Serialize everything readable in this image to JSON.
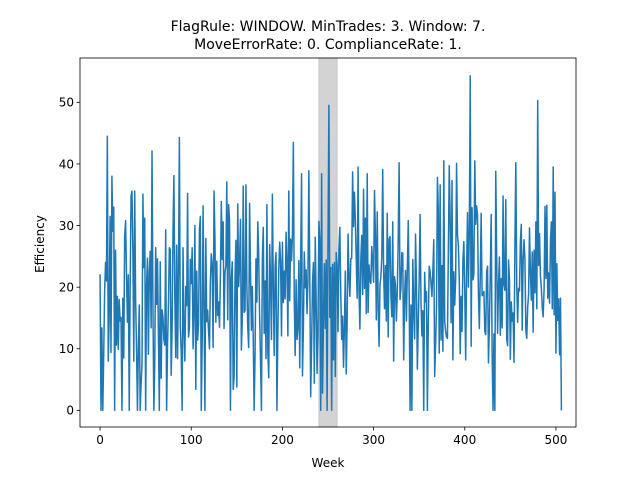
{
  "chart_data": {
    "type": "line",
    "title_lines": [
      "FlagRule: WINDOW. MinTrades: 3. Window: 7.",
      "MoveErrorRate: 0. ComplianceRate: 1."
    ],
    "xlabel": "Week",
    "ylabel": "Efficiency",
    "xlim": [
      -22,
      522
    ],
    "ylim": [
      -2.7,
      57.2
    ],
    "xticks": [
      0,
      100,
      200,
      300,
      400,
      500
    ],
    "yticks": [
      0,
      10,
      20,
      30,
      40,
      50
    ],
    "grid": false,
    "highlight_band": {
      "x_start": 240,
      "x_end": 260,
      "color": "#d3d3d3"
    },
    "series": [
      {
        "color": "#1f77b4",
        "x_start": 0,
        "x_step": 1,
        "values": [
          22.1,
          0,
          13.4,
          0,
          9,
          19.3,
          24,
          21,
          44.5,
          8,
          15.1,
          31.5,
          9.4,
          38,
          29.1,
          33,
          0,
          26,
          10.6,
          18.5,
          9.9,
          18,
          14.5,
          15.1,
          0,
          18.2,
          8.5,
          28.2,
          30.8,
          22.1,
          14.3,
          22,
          0,
          19.9,
          34.8,
          35.6,
          26,
          8,
          35.6,
          18,
          10.2,
          0,
          10.1,
          17.1,
          0,
          4.3,
          7.5,
          35.1,
          23.2,
          31.2,
          0,
          20.3,
          24.7,
          9.1,
          22.4,
          25.8,
          13.4,
          42.1,
          17.2,
          0,
          7.8,
          26.4,
          17.2,
          24.6,
          12.2,
          0,
          24.1,
          5.2,
          16.3,
          15.2,
          11.5,
          10.6,
          29.3,
          0,
          10.6,
          17,
          26.4,
          26.1,
          5.7,
          13.4,
          28.9,
          38.1,
          18.4,
          8.6,
          26.8,
          8.4,
          22.4,
          44.3,
          13.4,
          9.6,
          0,
          26.4,
          13.2,
          8,
          20.1,
          17,
          35.2,
          11.9,
          13.4,
          24.5,
          20.6,
          26.4,
          10,
          16.2,
          30,
          3.4,
          22.6,
          11.4,
          13.9,
          29.4,
          31.5,
          0,
          11.2,
          33.2,
          16.8,
          0,
          27.9,
          14.4,
          16.3,
          12.9,
          10,
          21.1,
          25.4,
          23.4,
          10.2,
          35.6,
          28.1,
          14.3,
          24.2,
          15.4,
          17.6,
          13.5,
          21.9,
          33.9,
          24.5,
          30.6,
          13.3,
          22.3,
          23.5,
          37.1,
          14.7,
          33.4,
          30.9,
          0,
          21.4,
          24.1,
          3.4,
          5.3,
          21.3,
          27.6,
          3.8,
          33.5,
          20.1,
          23.5,
          31,
          9.8,
          14.8,
          36.4,
          15.9,
          16.2,
          36.6,
          20.3,
          13.6,
          10.2,
          33.6,
          22.5,
          13,
          20.1,
          11.8,
          0,
          9.1,
          24.6,
          17.6,
          30.6,
          25.1,
          15.2,
          8.1,
          0,
          24.5,
          29.7,
          12.5,
          21,
          8.4,
          33.4,
          9.6,
          5.3,
          26.9,
          21.2,
          11.5,
          35.1,
          20.3,
          8.9,
          23.4,
          25.6,
          0,
          12.5,
          22.7,
          27.3,
          24.1,
          12.1,
          27.3,
          17.5,
          22.6,
          18.1,
          28.9,
          24,
          12.1,
          35.6,
          17.8,
          27.8,
          24.3,
          28.6,
          43.5,
          18,
          8.9,
          21.2,
          11.5,
          13.4,
          24.3,
          6.9,
          23.8,
          38.4,
          5.6,
          13.3,
          25.7,
          19.9,
          22.8,
          15.7,
          21,
          38.9,
          22,
          2.2,
          10.4,
          20.6,
          24,
          4.4,
          28.1,
          17.9,
          6,
          13.2,
          30.7,
          27.9,
          0,
          38.4,
          2.8,
          14.4,
          23.8,
          13.3,
          24.4,
          0,
          27.1,
          49.5,
          15.1,
          23.2,
          0,
          23.7,
          8.2,
          24,
          5.5,
          25.6,
          23.7,
          12.8,
          26.4,
          29.7,
          19.1,
          11.5,
          15.3,
          7,
          13.5,
          22.6,
          5.9,
          14.4,
          28.6,
          21.8,
          18.5,
          24.6,
          24.7,
          38.7,
          29.8,
          35.4,
          30.8,
          24.4,
          18.2,
          39.5,
          19.3,
          13.2,
          24.5,
          28.4,
          18.8,
          35.9,
          19.8,
          31.2,
          15.7,
          38.4,
          15.9,
          23.6,
          21.1,
          20.6,
          26.6,
          24.1,
          20.8,
          35.7,
          28.6,
          14.7,
          32.2,
          16.7,
          10.4,
          20.4,
          21.7,
          24.8,
          39.1,
          22.5,
          16.5,
          23.5,
          14.5,
          32,
          11.9,
          27.8,
          28.2,
          18.6,
          15.2,
          30.6,
          8,
          21.7,
          20.2,
          14.5,
          19.3,
          27.8,
          40.2,
          18,
          19.8,
          25.6,
          25.5,
          8.2,
          18.4,
          22.7,
          14.5,
          22.9,
          30.8,
          19.1,
          0,
          17.1,
          0,
          24.5,
          16.5,
          11.6,
          28.6,
          20.5,
          6.7,
          14,
          21.3,
          31.8,
          17.6,
          12.1,
          16.2,
          0,
          22.4,
          17.6,
          19.3,
          0,
          14.1,
          23.4,
          22.5,
          20.6,
          18.5,
          22.6,
          27.7,
          5.5,
          10.6,
          16.7,
          37.8,
          32.5,
          9.3,
          36.6,
          11.4,
          23.5,
          9.6,
          40.5,
          14.4,
          12.8,
          11.9,
          11.7,
          26,
          39.7,
          30.7,
          14.2,
          37.3,
          8.2,
          22.5,
          17.1,
          21.2,
          40.1,
          28.5,
          26.8,
          21.1,
          9.2,
          18.5,
          12.8,
          24.5,
          27.4,
          19.5,
          8.2,
          22.5,
          32.1,
          20,
          29.3,
          54.3,
          10.4,
          32.9,
          21.2,
          22.2,
          40.5,
          30.2,
          33.2,
          31.7,
          18.8,
          13.3,
          21.8,
          32,
          18.6,
          18.8,
          19.3,
          12.8,
          12.3,
          22.5,
          23.4,
          7.7,
          13.8,
          22.4,
          31.8,
          9.4,
          0,
          12.4,
          0,
          38.8,
          25.2,
          12.5,
          20.2,
          24.9,
          12.2,
          21.4,
          13.4,
          34.8,
          20.4,
          19.5,
          34.2,
          11.6,
          10.5,
          24.4,
          21.4,
          8.3,
          17.6,
          14.5,
          15.8,
          7.8,
          27.1,
          40.2,
          20.6,
          14.3,
          19.8,
          19.4,
          27.4,
          30.2,
          13,
          24.4,
          27.7,
          24.5,
          13,
          11.7,
          16.7,
          18.8,
          29.6,
          22.3,
          17.9,
          25.7,
          12.7,
          26,
          19.1,
          30.6,
          16.5,
          50.3,
          23.5,
          28.7,
          21.8,
          19.9,
          16.7,
          15.2,
          19.6,
          33.1,
          21.4,
          33.3,
          18.2,
          22.3,
          17.4,
          27.5,
          30.6,
          16.5,
          39.5,
          15.5,
          35.4,
          9.3,
          23.8,
          14.6,
          18.1,
          9,
          18.2,
          0
        ]
      }
    ]
  }
}
